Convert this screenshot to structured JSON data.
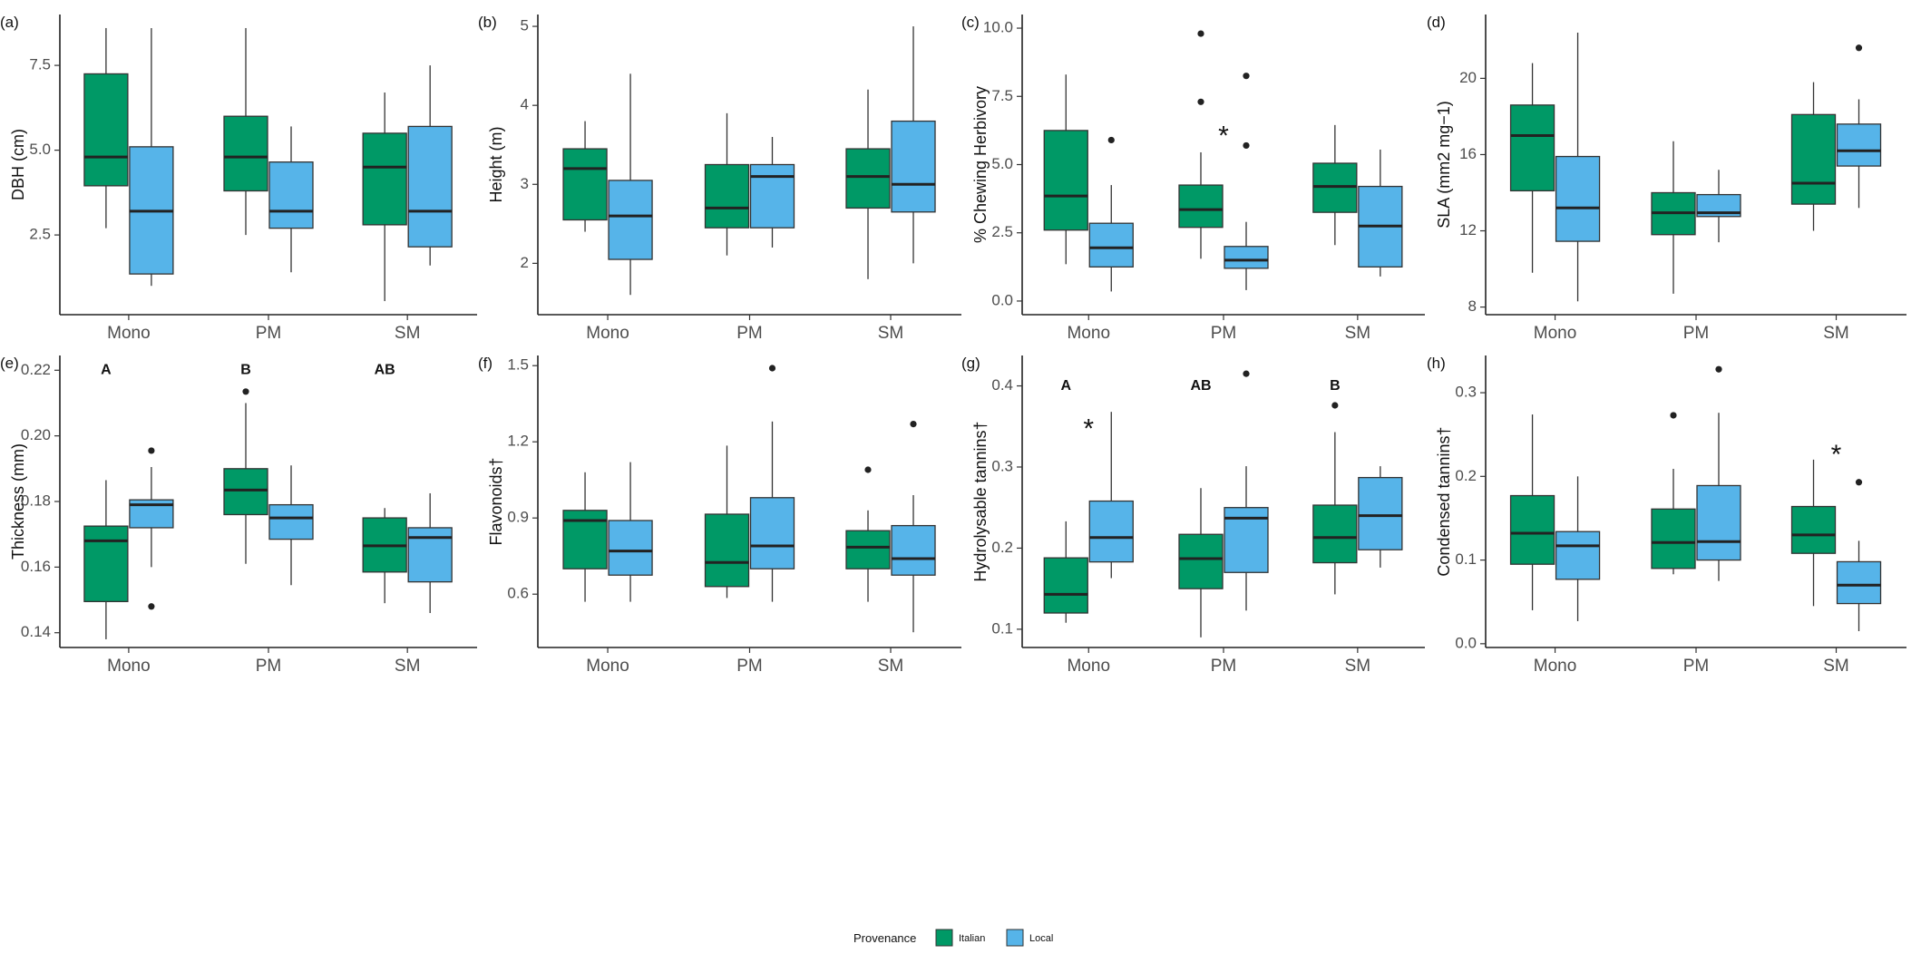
{
  "legend": {
    "title": "Provenance",
    "items": [
      {
        "label": "Italian",
        "color": "#009966"
      },
      {
        "label": "Local",
        "color": "#56B4E9"
      }
    ]
  },
  "chart_data": [
    {
      "panel": "(a)",
      "type": "box",
      "ylabel": "DBH (cm)",
      "categories": [
        "Mono",
        "PM",
        "SM"
      ],
      "ylim": [
        0.15,
        9.0
      ],
      "yticks": [
        2.5,
        5.0,
        7.5
      ],
      "ytick_labels": [
        "2.5",
        "5.0",
        "7.5"
      ],
      "series": [
        {
          "name": "Italian",
          "boxes": [
            {
              "low": 2.7,
              "q1": 3.95,
              "median": 4.8,
              "q3": 7.25,
              "high": 8.6,
              "outliers": []
            },
            {
              "low": 2.5,
              "q1": 3.8,
              "median": 4.8,
              "q3": 6.0,
              "high": 8.6,
              "outliers": []
            },
            {
              "low": 0.55,
              "q1": 2.8,
              "median": 4.5,
              "q3": 5.5,
              "high": 6.7,
              "outliers": []
            }
          ]
        },
        {
          "name": "Local",
          "boxes": [
            {
              "low": 1.0,
              "q1": 1.35,
              "median": 3.2,
              "q3": 5.1,
              "high": 8.6,
              "outliers": []
            },
            {
              "low": 1.4,
              "q1": 2.7,
              "median": 3.2,
              "q3": 4.65,
              "high": 5.7,
              "outliers": []
            },
            {
              "low": 1.6,
              "q1": 2.15,
              "median": 3.2,
              "q3": 5.7,
              "high": 7.5,
              "outliers": []
            }
          ]
        }
      ],
      "letters": [],
      "stars": []
    },
    {
      "panel": "(b)",
      "type": "box",
      "ylabel": "Height (m)",
      "categories": [
        "Mono",
        "PM",
        "SM"
      ],
      "ylim": [
        1.35,
        5.15
      ],
      "yticks": [
        2,
        3,
        4,
        5
      ],
      "ytick_labels": [
        "2",
        "3",
        "4",
        "5"
      ],
      "series": [
        {
          "name": "Italian",
          "boxes": [
            {
              "low": 2.4,
              "q1": 2.55,
              "median": 3.2,
              "q3": 3.45,
              "high": 3.8,
              "outliers": []
            },
            {
              "low": 2.1,
              "q1": 2.45,
              "median": 2.7,
              "q3": 3.25,
              "high": 3.9,
              "outliers": []
            },
            {
              "low": 1.8,
              "q1": 2.7,
              "median": 3.1,
              "q3": 3.45,
              "high": 4.2,
              "outliers": []
            }
          ]
        },
        {
          "name": "Local",
          "boxes": [
            {
              "low": 1.6,
              "q1": 2.05,
              "median": 2.6,
              "q3": 3.05,
              "high": 4.4,
              "outliers": []
            },
            {
              "low": 2.2,
              "q1": 2.45,
              "median": 3.1,
              "q3": 3.25,
              "high": 3.6,
              "outliers": []
            },
            {
              "low": 2.0,
              "q1": 2.65,
              "median": 3.0,
              "q3": 3.8,
              "high": 5.0,
              "outliers": []
            }
          ]
        }
      ],
      "letters": [],
      "stars": []
    },
    {
      "panel": "(c)",
      "type": "box",
      "ylabel": "% Chewing Herbivory",
      "categories": [
        "Mono",
        "PM",
        "SM"
      ],
      "ylim": [
        -0.5,
        10.5
      ],
      "yticks": [
        0.0,
        2.5,
        5.0,
        7.5,
        10.0
      ],
      "ytick_labels": [
        "0.0",
        "2.5",
        "5.0",
        "7.5",
        "10.0"
      ],
      "series": [
        {
          "name": "Italian",
          "boxes": [
            {
              "low": 1.35,
              "q1": 2.6,
              "median": 3.85,
              "q3": 6.25,
              "high": 8.3,
              "outliers": []
            },
            {
              "low": 1.55,
              "q1": 2.7,
              "median": 3.35,
              "q3": 4.25,
              "high": 5.45,
              "outliers": [
                7.3,
                9.8
              ]
            },
            {
              "low": 2.05,
              "q1": 3.25,
              "median": 4.2,
              "q3": 5.05,
              "high": 6.45,
              "outliers": []
            }
          ]
        },
        {
          "name": "Local",
          "boxes": [
            {
              "low": 0.35,
              "q1": 1.25,
              "median": 1.95,
              "q3": 2.85,
              "high": 4.25,
              "outliers": [
                5.9
              ]
            },
            {
              "low": 0.4,
              "q1": 1.2,
              "median": 1.5,
              "q3": 2.0,
              "high": 2.9,
              "outliers": [
                5.7,
                8.25
              ]
            },
            {
              "low": 0.9,
              "q1": 1.25,
              "median": 2.75,
              "q3": 4.2,
              "high": 5.55,
              "outliers": []
            }
          ]
        }
      ],
      "letters": [],
      "stars": [
        {
          "category": "PM",
          "y": 6.05,
          "text": "*"
        }
      ]
    },
    {
      "panel": "(d)",
      "type": "box",
      "ylabel": "SLA (mm2 mg−1)",
      "categories": [
        "Mono",
        "PM",
        "SM"
      ],
      "ylim": [
        7.6,
        23.35
      ],
      "yticks": [
        8,
        12,
        16,
        20
      ],
      "ytick_labels": [
        "8",
        "12",
        "16",
        "20"
      ],
      "series": [
        {
          "name": "Italian",
          "boxes": [
            {
              "low": 9.8,
              "q1": 14.1,
              "median": 17.0,
              "q3": 18.6,
              "high": 20.8,
              "outliers": []
            },
            {
              "low": 8.7,
              "q1": 11.8,
              "median": 12.95,
              "q3": 14.0,
              "high": 16.7,
              "outliers": []
            },
            {
              "low": 12.0,
              "q1": 13.4,
              "median": 14.5,
              "q3": 18.1,
              "high": 19.8,
              "outliers": []
            }
          ]
        },
        {
          "name": "Local",
          "boxes": [
            {
              "low": 8.3,
              "q1": 11.45,
              "median": 13.2,
              "q3": 15.9,
              "high": 22.4,
              "outliers": []
            },
            {
              "low": 11.4,
              "q1": 12.75,
              "median": 12.95,
              "q3": 13.9,
              "high": 15.2,
              "outliers": []
            },
            {
              "low": 13.2,
              "q1": 15.4,
              "median": 16.2,
              "q3": 17.6,
              "high": 18.9,
              "outliers": [
                21.6
              ]
            }
          ]
        }
      ],
      "letters": [],
      "stars": []
    },
    {
      "panel": "(e)",
      "type": "box",
      "ylabel": "Thickness (mm)",
      "categories": [
        "Mono",
        "PM",
        "SM"
      ],
      "ylim": [
        0.1355,
        0.2245
      ],
      "yticks": [
        0.14,
        0.16,
        0.18,
        0.2,
        0.22
      ],
      "ytick_labels": [
        "0.14",
        "0.16",
        "0.18",
        "0.20",
        "0.22"
      ],
      "series": [
        {
          "name": "Italian",
          "boxes": [
            {
              "low": 0.138,
              "q1": 0.1495,
              "median": 0.168,
              "q3": 0.1725,
              "high": 0.1865,
              "outliers": []
            },
            {
              "low": 0.161,
              "q1": 0.176,
              "median": 0.1835,
              "q3": 0.19,
              "high": 0.21,
              "outliers": [
                0.2135
              ]
            },
            {
              "low": 0.149,
              "q1": 0.1585,
              "median": 0.1665,
              "q3": 0.175,
              "high": 0.178,
              "outliers": []
            }
          ]
        },
        {
          "name": "Local",
          "boxes": [
            {
              "low": 0.16,
              "q1": 0.172,
              "median": 0.179,
              "q3": 0.1805,
              "high": 0.1905,
              "outliers": [
                0.1955,
                0.148
              ]
            },
            {
              "low": 0.1545,
              "q1": 0.1685,
              "median": 0.175,
              "q3": 0.179,
              "high": 0.191,
              "outliers": []
            },
            {
              "low": 0.146,
              "q1": 0.1555,
              "median": 0.169,
              "q3": 0.172,
              "high": 0.1825,
              "outliers": []
            }
          ]
        }
      ],
      "letters": [
        {
          "category": "Mono",
          "y": 0.22,
          "text": "A"
        },
        {
          "category": "PM",
          "y": 0.22,
          "text": "B"
        },
        {
          "category": "SM",
          "y": 0.22,
          "text": "AB"
        }
      ],
      "stars": []
    },
    {
      "panel": "(f)",
      "type": "box",
      "ylabel": "Flavonoids†",
      "categories": [
        "Mono",
        "PM",
        "SM"
      ],
      "ylim": [
        0.39,
        1.54
      ],
      "yticks": [
        0.6,
        0.9,
        1.2,
        1.5
      ],
      "ytick_labels": [
        "0.6",
        "0.9",
        "1.2",
        "1.5"
      ],
      "series": [
        {
          "name": "Italian",
          "boxes": [
            {
              "low": 0.57,
              "q1": 0.7,
              "median": 0.89,
              "q3": 0.93,
              "high": 1.08,
              "outliers": []
            },
            {
              "low": 0.585,
              "q1": 0.63,
              "median": 0.725,
              "q3": 0.915,
              "high": 1.185,
              "outliers": []
            },
            {
              "low": 0.57,
              "q1": 0.7,
              "median": 0.785,
              "q3": 0.85,
              "high": 0.93,
              "outliers": [
                1.09
              ]
            }
          ]
        },
        {
          "name": "Local",
          "boxes": [
            {
              "low": 0.57,
              "q1": 0.675,
              "median": 0.77,
              "q3": 0.89,
              "high": 1.12,
              "outliers": []
            },
            {
              "low": 0.57,
              "q1": 0.7,
              "median": 0.79,
              "q3": 0.98,
              "high": 1.28,
              "outliers": [
                1.49
              ]
            },
            {
              "low": 0.45,
              "q1": 0.675,
              "median": 0.74,
              "q3": 0.87,
              "high": 0.99,
              "outliers": [
                1.27
              ]
            }
          ]
        }
      ],
      "letters": [],
      "stars": []
    },
    {
      "panel": "(g)",
      "type": "box",
      "ylabel": "Hydrolysable tannins†",
      "categories": [
        "Mono",
        "PM",
        "SM"
      ],
      "ylim": [
        0.0775,
        0.4375
      ],
      "yticks": [
        0.1,
        0.2,
        0.3,
        0.4
      ],
      "ytick_labels": [
        "0.1",
        "0.2",
        "0.3",
        "0.4"
      ],
      "series": [
        {
          "name": "Italian",
          "boxes": [
            {
              "low": 0.108,
              "q1": 0.12,
              "median": 0.143,
              "q3": 0.188,
              "high": 0.233,
              "outliers": []
            },
            {
              "low": 0.09,
              "q1": 0.15,
              "median": 0.187,
              "q3": 0.217,
              "high": 0.274,
              "outliers": []
            },
            {
              "low": 0.143,
              "q1": 0.182,
              "median": 0.213,
              "q3": 0.253,
              "high": 0.343,
              "outliers": [
                0.376
              ]
            }
          ]
        },
        {
          "name": "Local",
          "boxes": [
            {
              "low": 0.163,
              "q1": 0.183,
              "median": 0.213,
              "q3": 0.258,
              "high": 0.368,
              "outliers": []
            },
            {
              "low": 0.123,
              "q1": 0.17,
              "median": 0.237,
              "q3": 0.25,
              "high": 0.301,
              "outliers": [
                0.415
              ]
            },
            {
              "low": 0.176,
              "q1": 0.198,
              "median": 0.24,
              "q3": 0.287,
              "high": 0.301,
              "outliers": []
            }
          ]
        }
      ],
      "letters": [
        {
          "category": "Mono",
          "y": 0.4,
          "text": "A"
        },
        {
          "category": "PM",
          "y": 0.4,
          "text": "AB"
        },
        {
          "category": "SM",
          "y": 0.4,
          "text": "B"
        }
      ],
      "stars": [
        {
          "category": "Mono",
          "y": 0.347,
          "text": "*"
        }
      ]
    },
    {
      "panel": "(h)",
      "type": "box",
      "ylabel": "Condensed tannins†",
      "categories": [
        "Mono",
        "PM",
        "SM"
      ],
      "ylim": [
        -0.0045,
        0.3445
      ],
      "yticks": [
        0.0,
        0.1,
        0.2,
        0.3
      ],
      "ytick_labels": [
        "0.0",
        "0.1",
        "0.2",
        "0.3"
      ],
      "series": [
        {
          "name": "Italian",
          "boxes": [
            {
              "low": 0.04,
              "q1": 0.095,
              "median": 0.132,
              "q3": 0.177,
              "high": 0.274,
              "outliers": []
            },
            {
              "low": 0.083,
              "q1": 0.09,
              "median": 0.121,
              "q3": 0.161,
              "high": 0.209,
              "outliers": [
                0.273
              ]
            },
            {
              "low": 0.045,
              "q1": 0.108,
              "median": 0.13,
              "q3": 0.164,
              "high": 0.22,
              "outliers": []
            }
          ]
        },
        {
          "name": "Local",
          "boxes": [
            {
              "low": 0.027,
              "q1": 0.077,
              "median": 0.117,
              "q3": 0.134,
              "high": 0.2,
              "outliers": []
            },
            {
              "low": 0.075,
              "q1": 0.1,
              "median": 0.122,
              "q3": 0.189,
              "high": 0.276,
              "outliers": [
                0.328
              ]
            },
            {
              "low": 0.015,
              "q1": 0.048,
              "median": 0.07,
              "q3": 0.098,
              "high": 0.123,
              "outliers": [
                0.193
              ]
            }
          ]
        }
      ],
      "letters": [],
      "stars": [
        {
          "category": "SM",
          "y": 0.226,
          "text": "*"
        }
      ]
    }
  ]
}
